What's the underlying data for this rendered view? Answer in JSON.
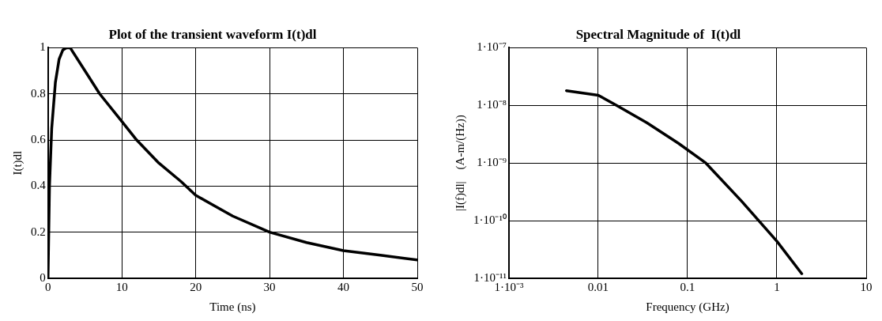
{
  "chart_data": [
    {
      "type": "line",
      "title": "Plot of the transient waveform I(t)dl",
      "xlabel": "Time (ns)",
      "ylabel": "I(t)dl",
      "xlim": [
        0,
        50
      ],
      "ylim": [
        0,
        1
      ],
      "xticks": [
        0,
        10,
        20,
        30,
        40,
        50
      ],
      "yticks": [
        0,
        0.2,
        0.4,
        0.6,
        0.8,
        1
      ],
      "grid": true,
      "legend": false,
      "marker": "none",
      "line_style": "solid",
      "series": [
        {
          "color": "#000000",
          "x": [
            0,
            0.2,
            0.5,
            1,
            1.5,
            2,
            2.5,
            3,
            5,
            7,
            10,
            12,
            15,
            18,
            20,
            25,
            30,
            35,
            40,
            45,
            50
          ],
          "values": [
            0,
            0.4,
            0.65,
            0.85,
            0.95,
            0.99,
            1,
            1,
            0.9,
            0.8,
            0.68,
            0.6,
            0.5,
            0.42,
            0.36,
            0.27,
            0.2,
            0.155,
            0.12,
            0.1,
            0.08
          ]
        }
      ]
    },
    {
      "type": "line",
      "title": "Spectral Magnitude of  I(t)dl",
      "xlabel": "Frequency (GHz)",
      "ylabel": "|I(f)dl|    (A-m/(Hz))",
      "log": "xy",
      "xlim": [
        0.001,
        10
      ],
      "ylim": [
        1e-11,
        1e-07
      ],
      "xticks": [
        {
          "value": 0.001,
          "label": "1·10⁻³"
        },
        0.01,
        0.1,
        1,
        10
      ],
      "yticks": [
        {
          "value": 1e-11,
          "label": "1·10⁻¹¹"
        },
        {
          "value": 1e-10,
          "label": "1·10⁻¹⁰"
        },
        {
          "value": 1e-09,
          "label": "1·10⁻⁹"
        },
        {
          "value": 1e-08,
          "label": "1·10⁻⁸"
        },
        {
          "value": 1e-07,
          "label": "1·10⁻⁷"
        }
      ],
      "grid": true,
      "legend": false,
      "marker": "none",
      "line_style": "solid",
      "series": [
        {
          "color": "#000000",
          "x": [
            0.0044,
            0.01,
            0.016,
            0.035,
            0.079,
            0.16,
            0.4,
            1,
            1.9
          ],
          "values": [
            1.8e-08,
            1.5e-08,
            1e-08,
            5e-09,
            2.2e-09,
            1e-09,
            2.2e-10,
            4.4e-11,
            1.2e-11
          ]
        }
      ]
    }
  ]
}
